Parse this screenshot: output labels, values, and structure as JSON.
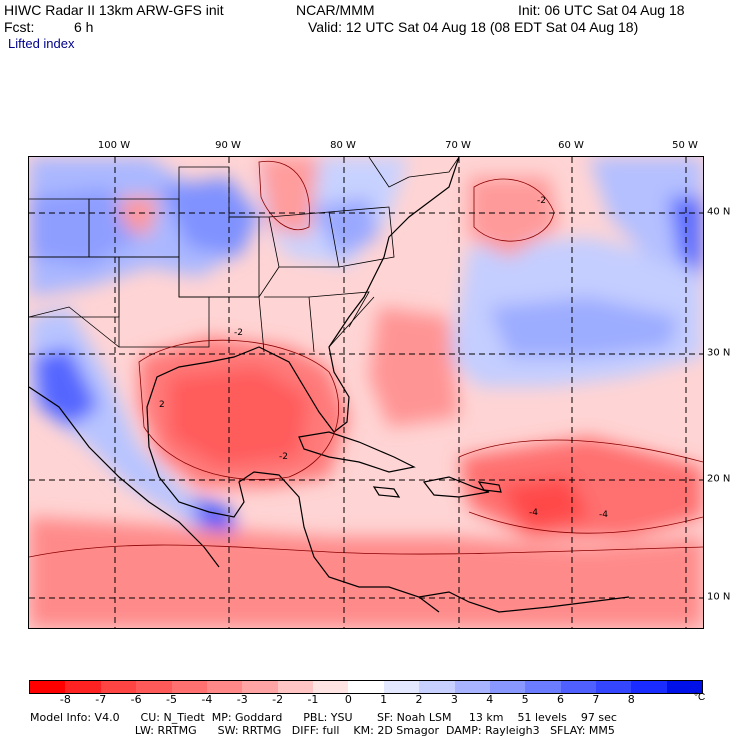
{
  "header": {
    "model": "HIWC Radar II 13km ARW-GFS init",
    "org": "NCAR/MMM",
    "init": "Init: 06 UTC Sat 04 Aug 18",
    "fcst_label": "Fcst:",
    "fcst_value": "6 h",
    "valid": "Valid: 12 UTC Sat 04 Aug 18 (08 EDT Sat 04 Aug 18)",
    "field": "Lifted index"
  },
  "map": {
    "lon_labels": [
      "100 W",
      "90 W",
      "80 W",
      "70 W",
      "60 W",
      "50 W"
    ],
    "lat_labels": [
      "40 N",
      "30 N",
      "20 N",
      "10 N"
    ],
    "contour_labels": [
      "-2",
      "-2",
      "-2",
      "-4",
      "-4",
      "2"
    ]
  },
  "colorbar": {
    "colors": [
      "#ff0000",
      "#ff2222",
      "#ff4444",
      "#ff5a5a",
      "#ff7070",
      "#ff8888",
      "#ffa4a4",
      "#ffc4c4",
      "#ffe4e4",
      "#ffffff",
      "#e4e8ff",
      "#c8d0ff",
      "#a8b4ff",
      "#8898ff",
      "#6c7cff",
      "#5060ff",
      "#3446ff",
      "#1a2cff",
      "#0010e8"
    ],
    "ticks": [
      "-8",
      "-7",
      "-6",
      "-5",
      "-4",
      "-3",
      "-2",
      "-1",
      "0",
      "1",
      "2",
      "3",
      "4",
      "5",
      "6",
      "7",
      "8"
    ],
    "unit": "°C"
  },
  "footer": {
    "line1": "Model Info: V4.0      CU: N_Tiedt  MP: Goddard      PBL: YSU       SF: Noah LSM     13 km    51 levels    97 sec",
    "line2": "                              LW: RRTMG      SW: RRTMG   DIFF: full    KM: 2D Smagor  DAMP: Rayleigh3   SFLAY: MM5"
  }
}
